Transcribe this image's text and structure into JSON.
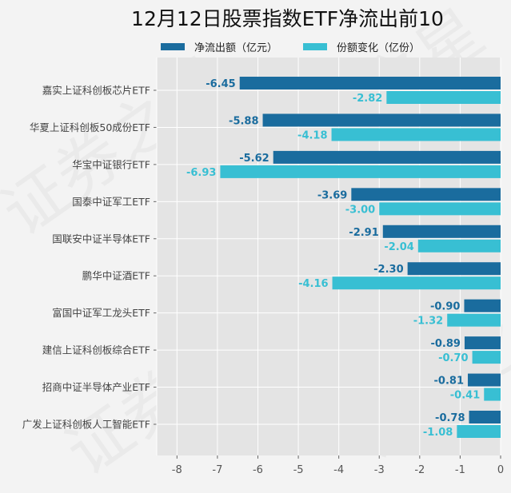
{
  "watermark": "证券之星",
  "chart_data": {
    "type": "bar",
    "orientation": "horizontal",
    "title": "12月12日股票指数ETF净流出前10",
    "categories": [
      "嘉实上证科创板芯片ETF",
      "华夏上证科创板50成份ETF",
      "华宝中证银行ETF",
      "国泰中证军工ETF",
      "国联安中证半导体ETF",
      "鹏华中证酒ETF",
      "富国中证军工龙头ETF",
      "建信上证科创板综合ETF",
      "招商中证半导体产业ETF",
      "广发上证科创板人工智能ETF"
    ],
    "series": [
      {
        "name": "净流出额（亿元）",
        "color": "#1a6c9e",
        "values": [
          -6.45,
          -5.88,
          -5.62,
          -3.69,
          -2.91,
          -2.3,
          -0.9,
          -0.89,
          -0.81,
          -0.78
        ]
      },
      {
        "name": "份额变化（亿份）",
        "color": "#38bfd3",
        "values": [
          -2.82,
          -4.18,
          -6.93,
          -3.0,
          -2.04,
          -4.16,
          -1.32,
          -0.7,
          -0.41,
          -1.08
        ]
      }
    ],
    "xlim": [
      -8.5,
      0
    ],
    "xticks": [
      -8,
      -7,
      -6,
      -5,
      -4,
      -3,
      -2,
      -1,
      0
    ],
    "xlabel": "",
    "ylabel": "",
    "grid": true,
    "legend_position": "top"
  }
}
